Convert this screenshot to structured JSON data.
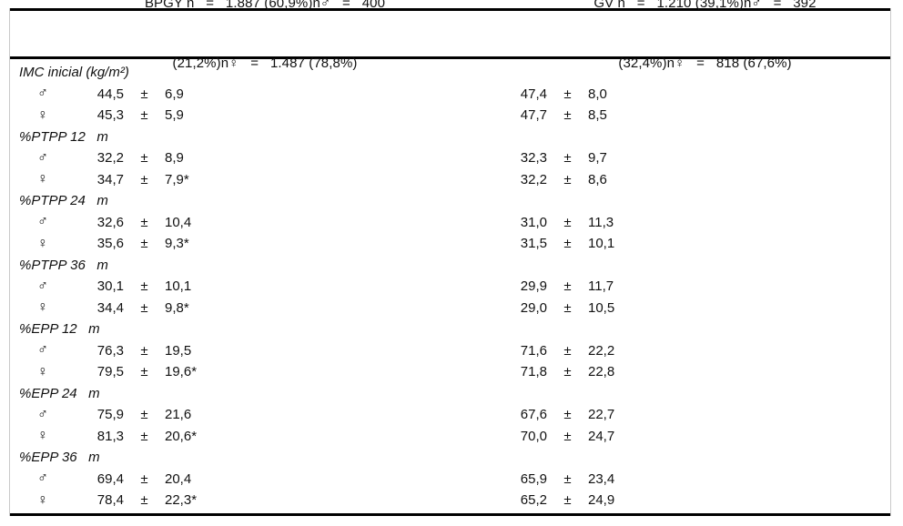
{
  "header": {
    "bpgy_line1": "BPGY n   =   1.887 (60,9%)n♂   =   400",
    "bpgy_line2": "(21,2%)n♀   =   1.487 (78,8%)",
    "gv_line1": "GV n   =   1.210 (39,1%)n♂   =   392",
    "gv_line2": "(32,4%)n♀   =   818 (67,6%)"
  },
  "symbols": {
    "male": "♂",
    "female": "♀",
    "plus_minus": "±"
  },
  "colors": {
    "text": "#111111",
    "rule": "#000000",
    "background": "#ffffff"
  },
  "sections": [
    {
      "label": "IMC inicial (kg/m²)",
      "rows": [
        {
          "sex": "male",
          "bpgy_mean": "44,5",
          "bpgy_sd": "6,9",
          "gv_mean": "47,4",
          "gv_sd": "8,0"
        },
        {
          "sex": "female",
          "bpgy_mean": "45,3",
          "bpgy_sd": "5,9",
          "gv_mean": "47,7",
          "gv_sd": "8,5"
        }
      ]
    },
    {
      "label": "%PTPP 12   m",
      "rows": [
        {
          "sex": "male",
          "bpgy_mean": "32,2",
          "bpgy_sd": "8,9",
          "gv_mean": "32,3",
          "gv_sd": "9,7"
        },
        {
          "sex": "female",
          "bpgy_mean": "34,7",
          "bpgy_sd": "7,9*",
          "gv_mean": "32,2",
          "gv_sd": "8,6"
        }
      ]
    },
    {
      "label": "%PTPP 24   m",
      "rows": [
        {
          "sex": "male",
          "bpgy_mean": "32,6",
          "bpgy_sd": "10,4",
          "gv_mean": "31,0",
          "gv_sd": "11,3"
        },
        {
          "sex": "female",
          "bpgy_mean": "35,6",
          "bpgy_sd": "9,3*",
          "gv_mean": "31,5",
          "gv_sd": "10,1"
        }
      ]
    },
    {
      "label": "%PTPP 36   m",
      "rows": [
        {
          "sex": "male",
          "bpgy_mean": "30,1",
          "bpgy_sd": "10,1",
          "gv_mean": "29,9",
          "gv_sd": "11,7"
        },
        {
          "sex": "female",
          "bpgy_mean": "34,4",
          "bpgy_sd": "9,8*",
          "gv_mean": "29,0",
          "gv_sd": "10,5"
        }
      ]
    },
    {
      "label": "%EPP 12   m",
      "rows": [
        {
          "sex": "male",
          "bpgy_mean": "76,3",
          "bpgy_sd": "19,5",
          "gv_mean": "71,6",
          "gv_sd": "22,2"
        },
        {
          "sex": "female",
          "bpgy_mean": "79,5",
          "bpgy_sd": "19,6*",
          "gv_mean": "71,8",
          "gv_sd": "22,8"
        }
      ]
    },
    {
      "label": "%EPP 24   m",
      "rows": [
        {
          "sex": "male",
          "bpgy_mean": "75,9",
          "bpgy_sd": "21,6",
          "gv_mean": "67,6",
          "gv_sd": "22,7"
        },
        {
          "sex": "female",
          "bpgy_mean": "81,3",
          "bpgy_sd": "20,6*",
          "gv_mean": "70,0",
          "gv_sd": "24,7"
        }
      ]
    },
    {
      "label": "%EPP 36   m",
      "rows": [
        {
          "sex": "male",
          "bpgy_mean": "69,4",
          "bpgy_sd": "20,4",
          "gv_mean": "65,9",
          "gv_sd": "23,4"
        },
        {
          "sex": "female",
          "bpgy_mean": "78,4",
          "bpgy_sd": "22,3*",
          "gv_mean": "65,2",
          "gv_sd": "24,9"
        }
      ]
    }
  ]
}
